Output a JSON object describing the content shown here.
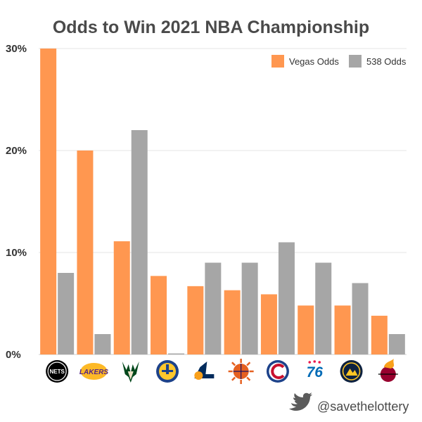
{
  "chart_data": {
    "type": "bar",
    "title": "Odds to Win 2021 NBA Championship",
    "xlabel": "",
    "ylabel": "",
    "ylim": [
      0,
      30
    ],
    "y_ticks": [
      0,
      10,
      20,
      30
    ],
    "y_tick_labels": [
      "0%",
      "10%",
      "20%",
      "30%"
    ],
    "grid": true,
    "legend_position": "top-right",
    "categories": [
      "Nets",
      "Lakers",
      "Bucks",
      "Warriors",
      "Jazz",
      "Suns",
      "Clippers",
      "76ers",
      "Nuggets",
      "Heat"
    ],
    "series": [
      {
        "name": "Vegas Odds",
        "color": "#FF9750",
        "values": [
          30,
          20,
          11.1,
          7.7,
          6.7,
          6.3,
          5.9,
          4.8,
          4.8,
          3.8
        ]
      },
      {
        "name": "538 Odds",
        "color": "#A6A6A6",
        "values": [
          8,
          2,
          22,
          0.1,
          9,
          9,
          11,
          9,
          7,
          2
        ]
      }
    ]
  },
  "logos": [
    {
      "team": "Nets",
      "icon": "nets-logo",
      "text": "NETS",
      "colors": [
        "#000000",
        "#ffffff"
      ]
    },
    {
      "team": "Lakers",
      "icon": "lakers-logo",
      "text": "LAKERS",
      "colors": [
        "#552583",
        "#FDB927"
      ]
    },
    {
      "team": "Bucks",
      "icon": "bucks-logo",
      "text": "",
      "colors": [
        "#00471B",
        "#EEE1C6"
      ]
    },
    {
      "team": "Warriors",
      "icon": "warriors-logo",
      "text": "",
      "colors": [
        "#1D428A",
        "#FFC72C"
      ]
    },
    {
      "team": "Jazz",
      "icon": "jazz-logo",
      "text": "",
      "colors": [
        "#002B5C",
        "#F9A01B"
      ]
    },
    {
      "team": "Suns",
      "icon": "suns-logo",
      "text": "",
      "colors": [
        "#E56020",
        "#1D1160"
      ]
    },
    {
      "team": "Clippers",
      "icon": "clippers-logo",
      "text": "",
      "colors": [
        "#1D428A",
        "#C8102E"
      ]
    },
    {
      "team": "76ers",
      "icon": "sixers-logo",
      "text": "76",
      "colors": [
        "#006BB6",
        "#ED174C"
      ]
    },
    {
      "team": "Nuggets",
      "icon": "nuggets-logo",
      "text": "",
      "colors": [
        "#0E2240",
        "#FEC524"
      ]
    },
    {
      "team": "Heat",
      "icon": "heat-logo",
      "text": "",
      "colors": [
        "#98002E",
        "#F9A01B"
      ]
    }
  ],
  "footer": {
    "icon": "twitter-icon",
    "handle": "@savethelottery",
    "icon_color": "#5b5b5b"
  }
}
